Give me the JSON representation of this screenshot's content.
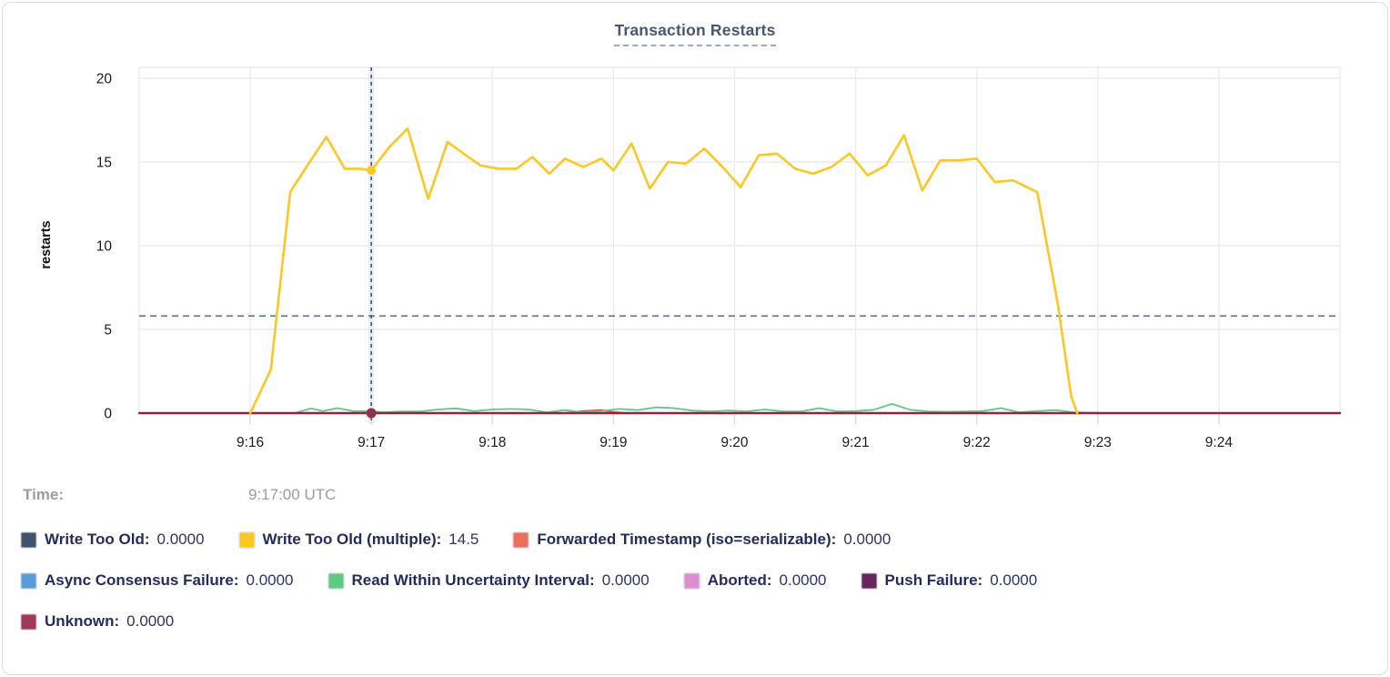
{
  "header": {
    "title": "Transaction Restarts"
  },
  "legend": {
    "time_label": "Time:",
    "time_value": "9:17:00 UTC",
    "rows": [
      [
        {
          "label": "Write Too Old:",
          "value": "0.0000",
          "color": "#44536d"
        },
        {
          "label": "Write Too Old (multiple):",
          "value": "14.5",
          "color": "#fbc724"
        },
        {
          "label": "Forwarded Timestamp (iso=serializable):",
          "value": "0.0000",
          "color": "#ea6f5f"
        }
      ],
      [
        {
          "label": "Async Consensus Failure:",
          "value": "0.0000",
          "color": "#5b9cd6"
        },
        {
          "label": "Read Within Uncertainty Interval:",
          "value": "0.0000",
          "color": "#5fc884"
        },
        {
          "label": "Aborted:",
          "value": "0.0000",
          "color": "#db8dd0"
        },
        {
          "label": "Push Failure:",
          "value": "0.0000",
          "color": "#68275b"
        }
      ],
      [
        {
          "label": "Unknown:",
          "value": "0.0000",
          "color": "#a03a58"
        }
      ]
    ]
  },
  "chart_data": {
    "type": "line",
    "title": "Transaction Restarts",
    "xlabel": "",
    "ylabel": "restarts",
    "ylim": [
      0,
      20
    ],
    "yticks": [
      0,
      5,
      10,
      15,
      20
    ],
    "x_domain_minutes": [
      15.083,
      25.0
    ],
    "xticks": [
      {
        "minute": 16,
        "label": "9:16"
      },
      {
        "minute": 17,
        "label": "9:17"
      },
      {
        "minute": 18,
        "label": "9:18"
      },
      {
        "minute": 19,
        "label": "9:19"
      },
      {
        "minute": 20,
        "label": "9:20"
      },
      {
        "minute": 21,
        "label": "9:21"
      },
      {
        "minute": 22,
        "label": "9:22"
      },
      {
        "minute": 23,
        "label": "9:23"
      },
      {
        "minute": 24,
        "label": "9:24"
      }
    ],
    "grid": true,
    "legend_position": "bottom",
    "avg_line_value": 5.8,
    "hover": {
      "minute": 17.0,
      "time_label": "9:17:00 UTC",
      "dots": [
        {
          "series": "Write Too Old (multiple)",
          "minute": 17.0,
          "value": 14.5,
          "color": "#fbc724",
          "r": 5
        },
        {
          "series": "Unknown",
          "minute": 17.0,
          "value": 0,
          "color": "#8f3154",
          "r": 5.5
        }
      ]
    },
    "series": [
      {
        "name": "Write Too Old",
        "color": "#475872",
        "width": 1.5,
        "points": [
          [
            15.083,
            0
          ],
          [
            25.0,
            0
          ]
        ]
      },
      {
        "name": "Async Consensus Failure",
        "color": "#5b9cd6",
        "width": 1.5,
        "points": [
          [
            15.083,
            0
          ],
          [
            25.0,
            0
          ]
        ]
      },
      {
        "name": "Aborted",
        "color": "#db8dd0",
        "width": 1.5,
        "points": [
          [
            15.083,
            0
          ],
          [
            25.0,
            0
          ]
        ]
      },
      {
        "name": "Push Failure",
        "color": "#68275b",
        "width": 1.5,
        "points": [
          [
            15.083,
            0
          ],
          [
            25.0,
            0
          ]
        ]
      },
      {
        "name": "Forwarded Timestamp (iso=serializable)",
        "color": "#e05252",
        "width": 2,
        "points": [
          [
            15.083,
            0
          ],
          [
            18.6,
            0
          ],
          [
            18.75,
            0.12
          ],
          [
            18.9,
            0.18
          ],
          [
            19.0,
            0.06
          ],
          [
            19.1,
            0
          ],
          [
            25.0,
            0
          ]
        ]
      },
      {
        "name": "Read Within Uncertainty Interval",
        "color": "#5fc884",
        "width": 1.8,
        "points": [
          [
            16.38,
            0.02
          ],
          [
            16.5,
            0.28
          ],
          [
            16.6,
            0.12
          ],
          [
            16.72,
            0.3
          ],
          [
            16.85,
            0.12
          ],
          [
            17.0,
            0.12
          ],
          [
            17.1,
            0.05
          ],
          [
            17.25,
            0.1
          ],
          [
            17.4,
            0.1
          ],
          [
            17.55,
            0.22
          ],
          [
            17.7,
            0.28
          ],
          [
            17.85,
            0.12
          ],
          [
            18.0,
            0.22
          ],
          [
            18.15,
            0.25
          ],
          [
            18.3,
            0.22
          ],
          [
            18.45,
            0.05
          ],
          [
            18.6,
            0.18
          ],
          [
            18.75,
            0.05
          ],
          [
            18.9,
            0.12
          ],
          [
            19.05,
            0.25
          ],
          [
            19.2,
            0.18
          ],
          [
            19.35,
            0.35
          ],
          [
            19.5,
            0.3
          ],
          [
            19.65,
            0.15
          ],
          [
            19.8,
            0.1
          ],
          [
            19.95,
            0.15
          ],
          [
            20.1,
            0.1
          ],
          [
            20.25,
            0.22
          ],
          [
            20.4,
            0.1
          ],
          [
            20.55,
            0.1
          ],
          [
            20.7,
            0.3
          ],
          [
            20.85,
            0.1
          ],
          [
            21.0,
            0.12
          ],
          [
            21.15,
            0.2
          ],
          [
            21.3,
            0.55
          ],
          [
            21.45,
            0.2
          ],
          [
            21.6,
            0.1
          ],
          [
            21.75,
            0.08
          ],
          [
            21.9,
            0.1
          ],
          [
            22.05,
            0.12
          ],
          [
            22.2,
            0.3
          ],
          [
            22.35,
            0.05
          ],
          [
            22.5,
            0.12
          ],
          [
            22.65,
            0.18
          ],
          [
            22.8,
            0.05
          ],
          [
            23.0,
            0.02
          ]
        ]
      },
      {
        "name": "Unknown",
        "color": "#8e2440",
        "width": 2.4,
        "points": [
          [
            15.083,
            0
          ],
          [
            25.0,
            0
          ]
        ]
      },
      {
        "name": "Write Too Old (multiple)",
        "color": "#fbc724",
        "width": 2.6,
        "points": [
          [
            16.0,
            0
          ],
          [
            16.17,
            2.6
          ],
          [
            16.33,
            13.2
          ],
          [
            16.5,
            15.1
          ],
          [
            16.63,
            16.5
          ],
          [
            16.78,
            14.6
          ],
          [
            16.9,
            14.6
          ],
          [
            17.0,
            14.5
          ],
          [
            17.15,
            15.9
          ],
          [
            17.3,
            17.0
          ],
          [
            17.47,
            12.8
          ],
          [
            17.63,
            16.2
          ],
          [
            17.78,
            15.4
          ],
          [
            17.9,
            14.8
          ],
          [
            18.05,
            14.6
          ],
          [
            18.2,
            14.6
          ],
          [
            18.33,
            15.3
          ],
          [
            18.47,
            14.3
          ],
          [
            18.6,
            15.2
          ],
          [
            18.75,
            14.7
          ],
          [
            18.9,
            15.2
          ],
          [
            19.0,
            14.5
          ],
          [
            19.15,
            16.1
          ],
          [
            19.3,
            13.4
          ],
          [
            19.45,
            15.0
          ],
          [
            19.6,
            14.9
          ],
          [
            19.75,
            15.8
          ],
          [
            19.9,
            14.7
          ],
          [
            20.05,
            13.5
          ],
          [
            20.2,
            15.4
          ],
          [
            20.35,
            15.5
          ],
          [
            20.5,
            14.6
          ],
          [
            20.65,
            14.3
          ],
          [
            20.8,
            14.7
          ],
          [
            20.95,
            15.5
          ],
          [
            21.1,
            14.2
          ],
          [
            21.25,
            14.8
          ],
          [
            21.4,
            16.6
          ],
          [
            21.55,
            13.3
          ],
          [
            21.7,
            15.1
          ],
          [
            21.85,
            15.1
          ],
          [
            22.0,
            15.2
          ],
          [
            22.15,
            13.8
          ],
          [
            22.3,
            13.9
          ],
          [
            22.5,
            13.2
          ],
          [
            22.67,
            6.5
          ],
          [
            22.78,
            1.0
          ],
          [
            22.83,
            0
          ]
        ]
      }
    ],
    "style": {
      "grid_color": "#e6e6e6",
      "tick_stub_color": "#dfdfdf",
      "avg_line_color": "#5b7e9e",
      "hover_band_color": "#ebebeb",
      "hover_line_color": "#3e5878",
      "axis_text_color": "#1b1b1b"
    }
  }
}
